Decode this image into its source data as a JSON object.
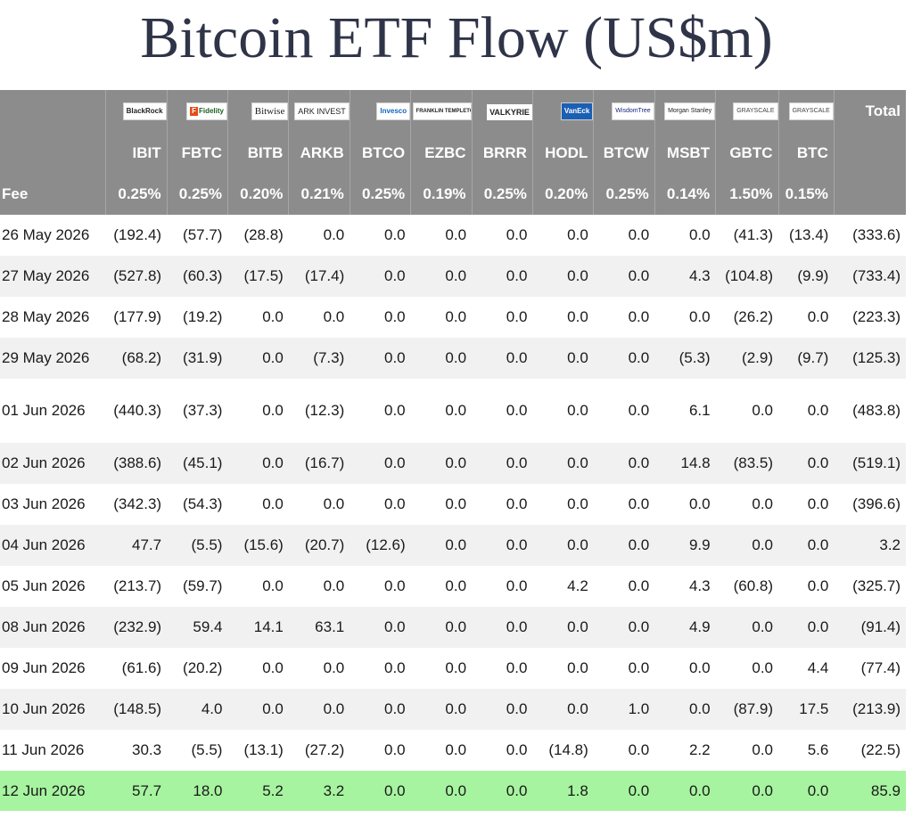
{
  "title": "Bitcoin ETF Flow (US$m)",
  "header": {
    "total_label": "Total",
    "fee_label": "Fee",
    "issuers": [
      "BlackRock",
      "Fidelity",
      "Bitwise",
      "ARK INVEST",
      "Invesco",
      "FRANKLIN TEMPLETON",
      "VALKYRIE",
      "VanEck",
      "WisdomTree",
      "Morgan Stanley",
      "GRAYSCALE",
      "GRAYSCALE"
    ],
    "tickers": [
      "IBIT",
      "FBTC",
      "BITB",
      "ARKB",
      "BTCO",
      "EZBC",
      "BRRR",
      "HODL",
      "BTCW",
      "MSBT",
      "GBTC",
      "BTC"
    ],
    "fees": [
      "0.25%",
      "0.25%",
      "0.20%",
      "0.21%",
      "0.25%",
      "0.19%",
      "0.25%",
      "0.20%",
      "0.25%",
      "0.14%",
      "1.50%",
      "0.15%"
    ]
  },
  "rows": [
    {
      "date": "26 May 2026",
      "values": [
        "(192.4)",
        "(57.7)",
        "(28.8)",
        "0.0",
        "0.0",
        "0.0",
        "0.0",
        "0.0",
        "0.0",
        "0.0",
        "(41.3)",
        "(13.4)"
      ],
      "total": "(333.6)"
    },
    {
      "date": "27 May 2026",
      "values": [
        "(527.8)",
        "(60.3)",
        "(17.5)",
        "(17.4)",
        "0.0",
        "0.0",
        "0.0",
        "0.0",
        "0.0",
        "4.3",
        "(104.8)",
        "(9.9)"
      ],
      "total": "(733.4)"
    },
    {
      "date": "28 May 2026",
      "values": [
        "(177.9)",
        "(19.2)",
        "0.0",
        "0.0",
        "0.0",
        "0.0",
        "0.0",
        "0.0",
        "0.0",
        "0.0",
        "(26.2)",
        "0.0"
      ],
      "total": "(223.3)"
    },
    {
      "date": "29 May 2026",
      "values": [
        "(68.2)",
        "(31.9)",
        "0.0",
        "(7.3)",
        "0.0",
        "0.0",
        "0.0",
        "0.0",
        "0.0",
        "(5.3)",
        "(2.9)",
        "(9.7)"
      ],
      "total": "(125.3)"
    },
    {
      "date": "01 Jun 2026",
      "values": [
        "(440.3)",
        "(37.3)",
        "0.0",
        "(12.3)",
        "0.0",
        "0.0",
        "0.0",
        "0.0",
        "0.0",
        "6.1",
        "0.0",
        "0.0"
      ],
      "total": "(483.8)"
    },
    {
      "date": "02 Jun 2026",
      "values": [
        "(388.6)",
        "(45.1)",
        "0.0",
        "(16.7)",
        "0.0",
        "0.0",
        "0.0",
        "0.0",
        "0.0",
        "14.8",
        "(83.5)",
        "0.0"
      ],
      "total": "(519.1)"
    },
    {
      "date": "03 Jun 2026",
      "values": [
        "(342.3)",
        "(54.3)",
        "0.0",
        "0.0",
        "0.0",
        "0.0",
        "0.0",
        "0.0",
        "0.0",
        "0.0",
        "0.0",
        "0.0"
      ],
      "total": "(396.6)"
    },
    {
      "date": "04 Jun 2026",
      "values": [
        "47.7",
        "(5.5)",
        "(15.6)",
        "(20.7)",
        "(12.6)",
        "0.0",
        "0.0",
        "0.0",
        "0.0",
        "9.9",
        "0.0",
        "0.0"
      ],
      "total": "3.2"
    },
    {
      "date": "05 Jun 2026",
      "values": [
        "(213.7)",
        "(59.7)",
        "0.0",
        "0.0",
        "0.0",
        "0.0",
        "0.0",
        "4.2",
        "0.0",
        "4.3",
        "(60.8)",
        "0.0"
      ],
      "total": "(325.7)"
    },
    {
      "date": "08 Jun 2026",
      "values": [
        "(232.9)",
        "59.4",
        "14.1",
        "63.1",
        "0.0",
        "0.0",
        "0.0",
        "0.0",
        "0.0",
        "4.9",
        "0.0",
        "0.0"
      ],
      "total": "(91.4)"
    },
    {
      "date": "09 Jun 2026",
      "values": [
        "(61.6)",
        "(20.2)",
        "0.0",
        "0.0",
        "0.0",
        "0.0",
        "0.0",
        "0.0",
        "0.0",
        "0.0",
        "0.0",
        "4.4"
      ],
      "total": "(77.4)"
    },
    {
      "date": "10 Jun 2026",
      "values": [
        "(148.5)",
        "4.0",
        "0.0",
        "0.0",
        "0.0",
        "0.0",
        "0.0",
        "0.0",
        "1.0",
        "0.0",
        "(87.9)",
        "17.5"
      ],
      "total": "(213.9)"
    },
    {
      "date": "11 Jun 2026",
      "values": [
        "30.3",
        "(5.5)",
        "(13.1)",
        "(27.2)",
        "0.0",
        "0.0",
        "0.0",
        "(14.8)",
        "0.0",
        "2.2",
        "0.0",
        "5.6"
      ],
      "total": "(22.5)"
    },
    {
      "date": "12 Jun 2026",
      "values": [
        "57.7",
        "18.0",
        "5.2",
        "3.2",
        "0.0",
        "0.0",
        "0.0",
        "1.8",
        "0.0",
        "0.0",
        "0.0",
        "0.0"
      ],
      "total": "85.9"
    }
  ],
  "colors": {
    "header_bg": "#8c8c8c",
    "negative": "#e0302a",
    "zero": "#c3c3c3",
    "highlight_row": "#a7f4a0",
    "stripe": "#f1f1f1",
    "title": "#2f3448"
  }
}
